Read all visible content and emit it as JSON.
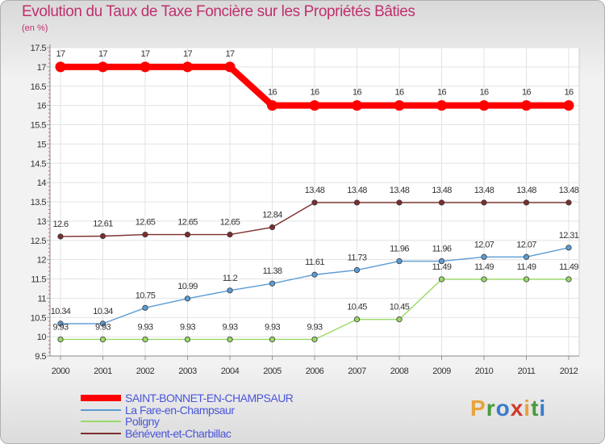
{
  "title": "Evolution du Taux de Taxe Foncière sur les Propriétés Bâties",
  "subtitle": "(en %)",
  "logo": {
    "text": "Proxiti",
    "letter_colors": [
      "#e8a33a",
      "#4a9a3a",
      "#3a7cc8",
      "#d13b2a",
      "#e8a33a",
      "#4a9a3a",
      "#3a7cc8"
    ]
  },
  "chart_data": {
    "type": "line",
    "x": [
      "2000",
      "2001",
      "2002",
      "2003",
      "2004",
      "2005",
      "2006",
      "2007",
      "2008",
      "2009",
      "2010",
      "2011",
      "2012"
    ],
    "ylim": [
      9.5,
      17.5
    ],
    "yticks": [
      "9.5",
      "10",
      "10.5",
      "11",
      "11.5",
      "12",
      "12.5",
      "13",
      "13.5",
      "14",
      "14.5",
      "15",
      "15.5",
      "16",
      "16.5",
      "17",
      "17.5"
    ],
    "grid": true,
    "legend_position": "bottom-left",
    "series": [
      {
        "name": "SAINT-BONNET-EN-CHAMPSAUR",
        "color": "#ff0000",
        "values": [
          17,
          17,
          17,
          17,
          17,
          16,
          16,
          16,
          16,
          16,
          16,
          16,
          16
        ],
        "labels": [
          "17",
          "17",
          "17",
          "17",
          "17",
          "16",
          "16",
          "16",
          "16",
          "16",
          "16",
          "16",
          "16"
        ]
      },
      {
        "name": "La Fare-en-Champsaur",
        "color": "#5b9bd5",
        "values": [
          10.34,
          10.34,
          10.75,
          10.99,
          11.2,
          11.38,
          11.61,
          11.73,
          11.96,
          11.96,
          12.07,
          12.07,
          12.31
        ],
        "labels": [
          "10.34",
          "10.34",
          "10.75",
          "10.99",
          "11.2",
          "11.38",
          "11.61",
          "11.73",
          "11.96",
          "11.96",
          "12.07",
          "12.07",
          "12.31"
        ]
      },
      {
        "name": "Poligny",
        "color": "#99d966",
        "values": [
          9.93,
          9.93,
          9.93,
          9.93,
          9.93,
          9.93,
          9.93,
          10.45,
          10.45,
          11.49,
          11.49,
          11.49,
          11.49
        ],
        "labels": [
          "9.93",
          "9.93",
          "9.93",
          "9.93",
          "9.93",
          "9.93",
          "9.93",
          "10.45",
          "10.45",
          "11.49",
          "11.49",
          "11.49",
          "11.49"
        ]
      },
      {
        "name": "Bénévent-et-Charbillac",
        "color": "#7b2e2e",
        "values": [
          12.6,
          12.61,
          12.65,
          12.65,
          12.65,
          12.84,
          13.48,
          13.48,
          13.48,
          13.48,
          13.48,
          13.48,
          13.48
        ],
        "labels": [
          "12.6",
          "12.61",
          "12.65",
          "12.65",
          "12.65",
          "12.84",
          "13.48",
          "13.48",
          "13.48",
          "13.48",
          "13.48",
          "13.48",
          "13.48"
        ]
      }
    ]
  }
}
